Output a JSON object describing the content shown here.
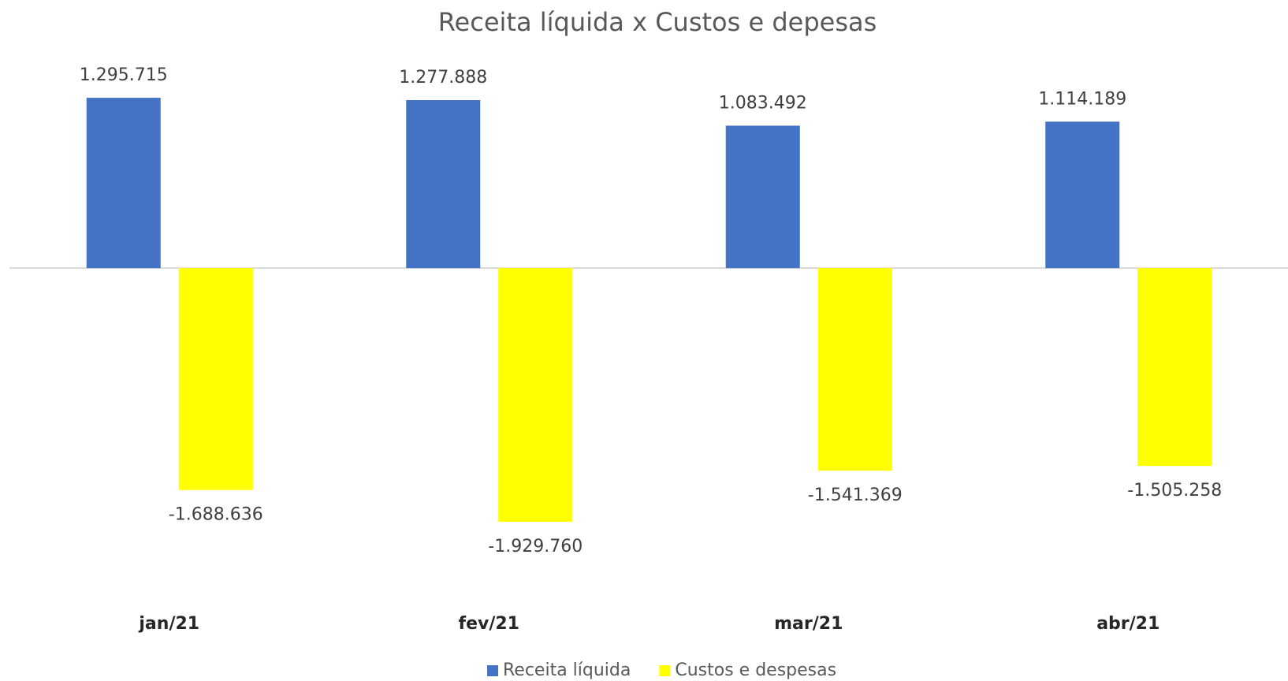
{
  "chart_data": {
    "type": "bar",
    "title": "Receita líquida x Custos e depesas",
    "categories": [
      "jan/21",
      "fev/21",
      "mar/21",
      "abr/21"
    ],
    "series": [
      {
        "name": "Receita líquida",
        "color": "#4472c4",
        "values": [
          1295715,
          1277888,
          1083492,
          1114189
        ],
        "value_labels": [
          "1.295.715",
          "1.277.888",
          "1.083.492",
          "1.114.189"
        ]
      },
      {
        "name": "Custos e despesas",
        "color": "#ffff00",
        "values": [
          -1688636,
          -1929760,
          -1541369,
          -1505258
        ],
        "value_labels": [
          "-1.688.636",
          "-1.929.760",
          "-1.541.369",
          "-1.505.258"
        ]
      }
    ],
    "ylim": [
      -2200000,
      1500000
    ],
    "legend": "bottom"
  }
}
